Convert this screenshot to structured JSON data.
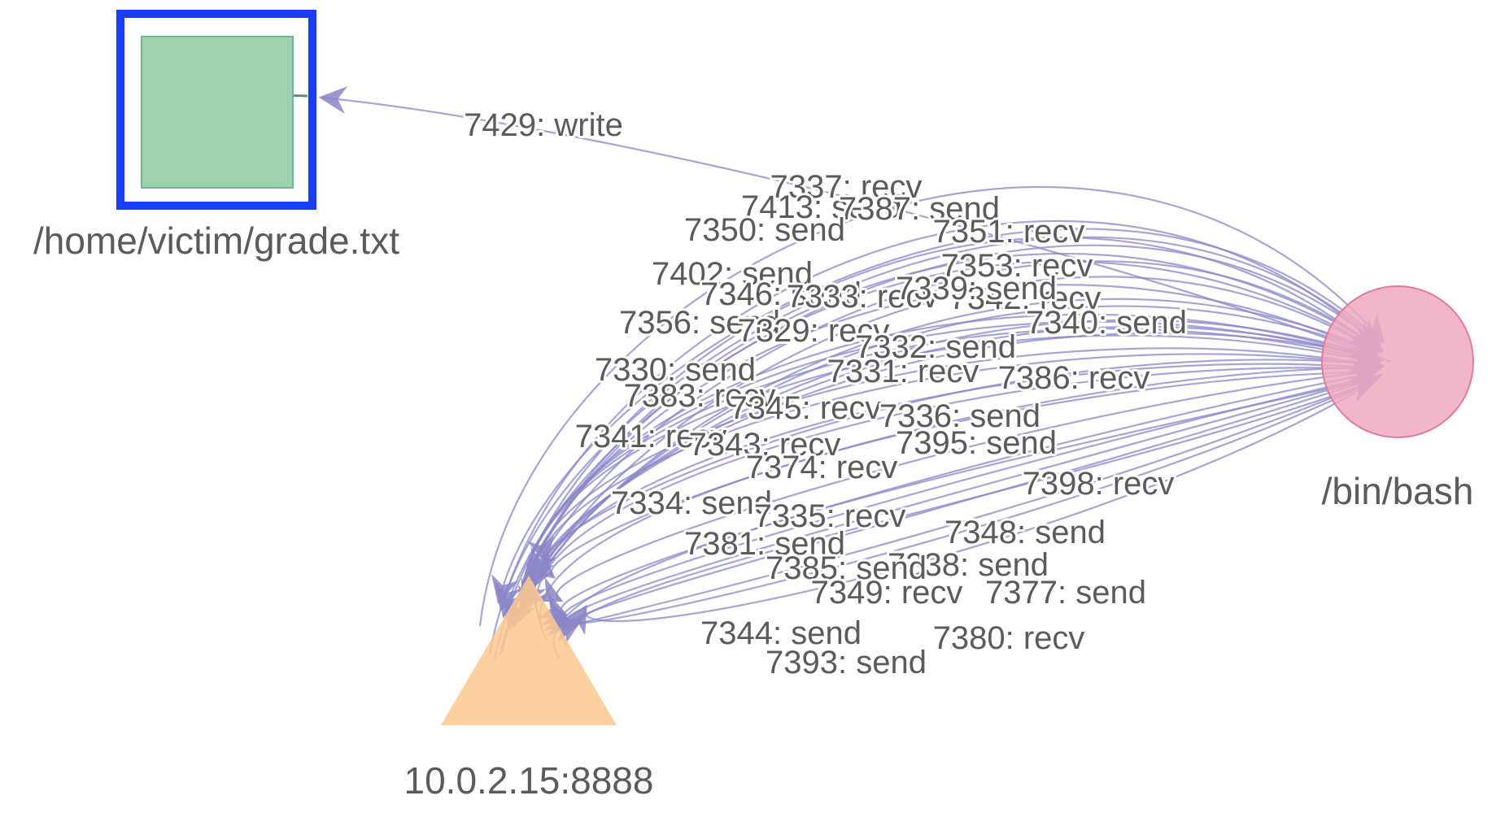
{
  "colors": {
    "edge": "#8a86c8",
    "file_fill": "#9fd3b0",
    "file_stroke": "#6fb88a",
    "selection": "#1a3cff",
    "process_fill": "#f0a9c1",
    "process_stroke": "#e07aa0",
    "socket_fill": "#fbc98f",
    "label": "#5b5b5b"
  },
  "nodes": {
    "file": {
      "label": "/home/victim/grade.txt",
      "shape": "square",
      "selected": true
    },
    "process": {
      "label": "/bin/bash",
      "shape": "circle"
    },
    "socket": {
      "label": "10.0.2.15:8888",
      "shape": "triangle"
    }
  },
  "edges": [
    {
      "label": "7429: write",
      "from": "process",
      "to": "file"
    },
    {
      "label": "7337: recv",
      "from": "socket",
      "to": "process"
    },
    {
      "label": "7413: send",
      "from": "process",
      "to": "socket"
    },
    {
      "label": "7387: send",
      "from": "process",
      "to": "socket"
    },
    {
      "label": "7350: send",
      "from": "process",
      "to": "socket"
    },
    {
      "label": "7351: recv",
      "from": "socket",
      "to": "process"
    },
    {
      "label": "7402: send",
      "from": "process",
      "to": "socket"
    },
    {
      "label": "7353: recv",
      "from": "socket",
      "to": "process"
    },
    {
      "label": "7346: send",
      "from": "process",
      "to": "socket"
    },
    {
      "label": "7333: recv",
      "from": "socket",
      "to": "process"
    },
    {
      "label": "7342: recv",
      "from": "socket",
      "to": "process"
    },
    {
      "label": "7339: send",
      "from": "process",
      "to": "socket"
    },
    {
      "label": "7356: send",
      "from": "process",
      "to": "socket"
    },
    {
      "label": "7329: recv",
      "from": "socket",
      "to": "process"
    },
    {
      "label": "7340: send",
      "from": "process",
      "to": "socket"
    },
    {
      "label": "7332: send",
      "from": "process",
      "to": "socket"
    },
    {
      "label": "7330: send",
      "from": "process",
      "to": "socket"
    },
    {
      "label": "7331: recv",
      "from": "socket",
      "to": "process"
    },
    {
      "label": "7386: recv",
      "from": "socket",
      "to": "process"
    },
    {
      "label": "7383: recv",
      "from": "socket",
      "to": "process"
    },
    {
      "label": "7345: recv",
      "from": "socket",
      "to": "process"
    },
    {
      "label": "7336: send",
      "from": "process",
      "to": "socket"
    },
    {
      "label": "7341: recv",
      "from": "socket",
      "to": "process"
    },
    {
      "label": "7343: recv",
      "from": "socket",
      "to": "process"
    },
    {
      "label": "7395: send",
      "from": "process",
      "to": "socket"
    },
    {
      "label": "7374: recv",
      "from": "socket",
      "to": "process"
    },
    {
      "label": "7398: recv",
      "from": "socket",
      "to": "process"
    },
    {
      "label": "7334: send",
      "from": "process",
      "to": "socket"
    },
    {
      "label": "7335: recv",
      "from": "socket",
      "to": "process"
    },
    {
      "label": "7348: send",
      "from": "process",
      "to": "socket"
    },
    {
      "label": "7381: send",
      "from": "process",
      "to": "socket"
    },
    {
      "label": "7338: send",
      "from": "process",
      "to": "socket"
    },
    {
      "label": "7385: send",
      "from": "process",
      "to": "socket"
    },
    {
      "label": "7349: recv",
      "from": "socket",
      "to": "process"
    },
    {
      "label": "7377: send",
      "from": "process",
      "to": "socket"
    },
    {
      "label": "7344: send",
      "from": "process",
      "to": "socket"
    },
    {
      "label": "7380: recv",
      "from": "socket",
      "to": "process"
    },
    {
      "label": "7393: send",
      "from": "process",
      "to": "socket"
    }
  ]
}
